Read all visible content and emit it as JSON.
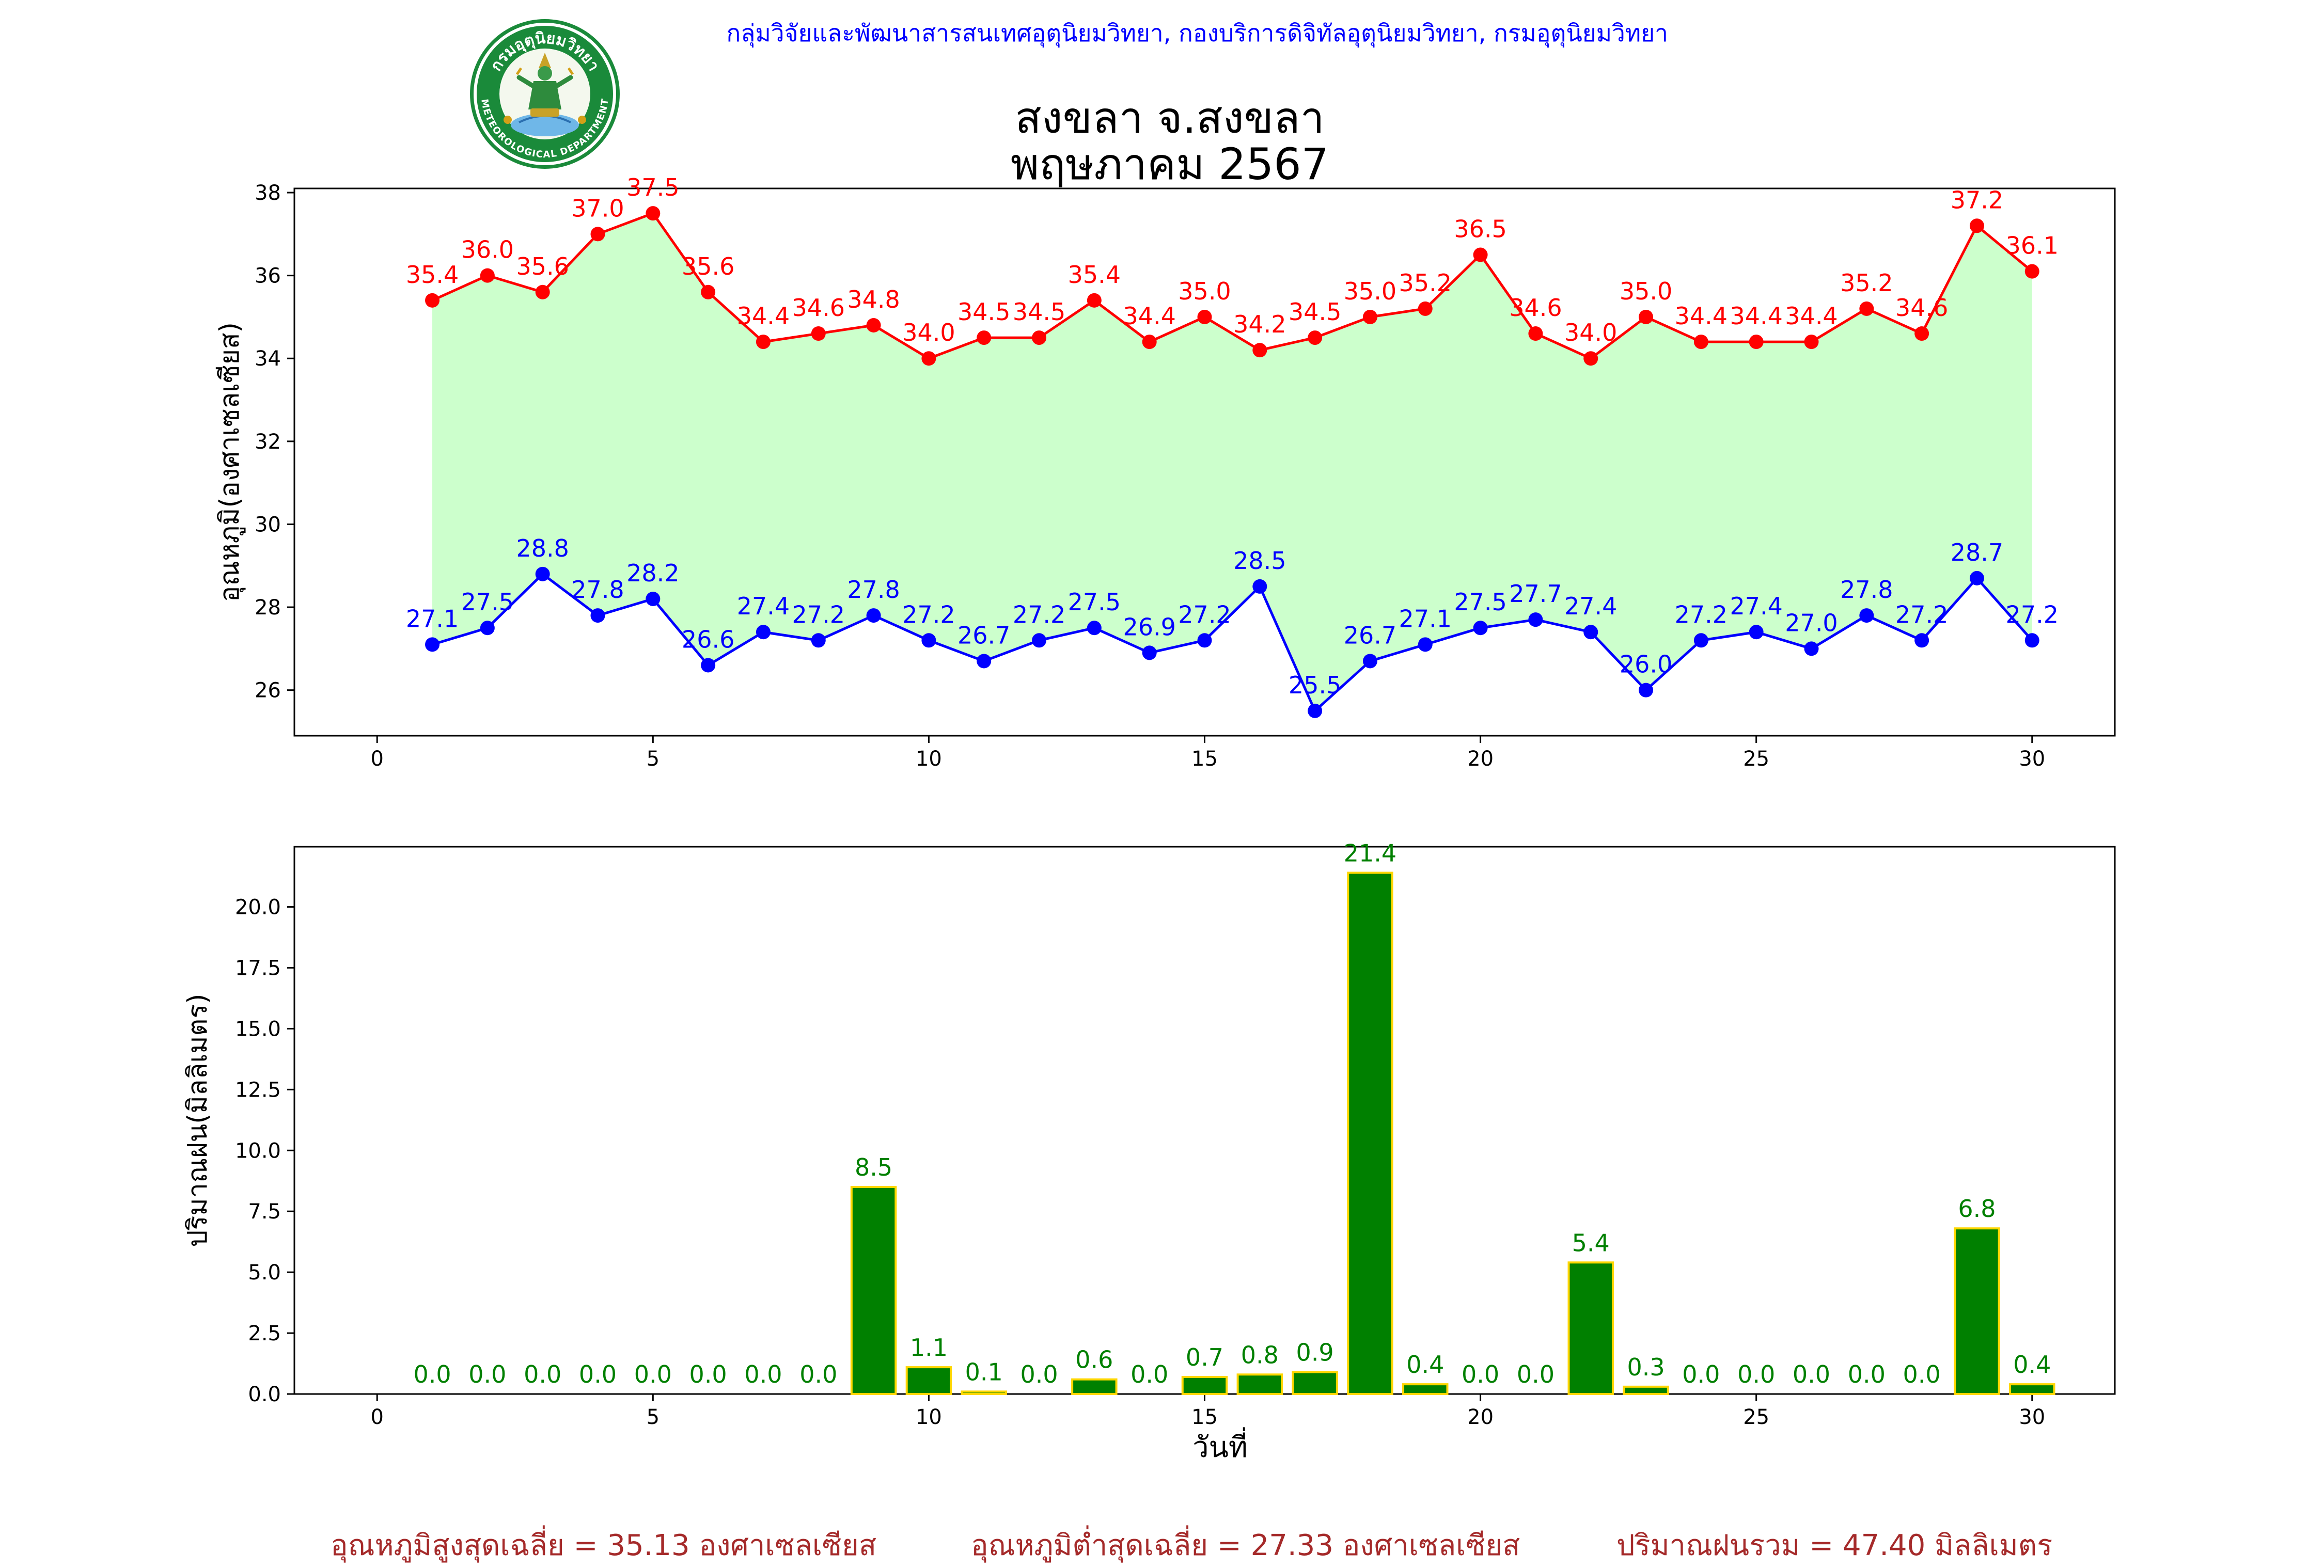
{
  "header": {
    "credit": "กลุ่มวิจัยและพัฒนาสารสนเทศอุตุนิยมวิทยา, กองบริการดิจิทัลอุตุนิยมวิทยา, กรมอุตุนิยมวิทยา",
    "title_line1": "สงขลา จ.สงขลา",
    "title_line2": "พฤษภาคม 2567",
    "logo_text_top": "กรมอุตุนิยมวิทยา",
    "logo_text_bottom": "METEOROLOGICAL DEPARTMENT"
  },
  "colors": {
    "max_temp": "#ff0000",
    "min_temp": "#0000ff",
    "temp_fill": "#ccffcc",
    "rain_bar": "#008000",
    "rain_edge": "#ffd700",
    "rain_label": "#008000",
    "footer": "#a52a2a"
  },
  "chart_data": [
    {
      "type": "line",
      "ylabel": "อุณหภูมิ(องศาเซลเซียส)",
      "xlim": [
        -1.5,
        31.5
      ],
      "ylim": [
        24.9,
        38.1
      ],
      "xticks": [
        0,
        5,
        10,
        15,
        20,
        25,
        30
      ],
      "yticks": [
        26,
        28,
        30,
        32,
        34,
        36,
        38
      ],
      "x": [
        1,
        2,
        3,
        4,
        5,
        6,
        7,
        8,
        9,
        10,
        11,
        12,
        13,
        14,
        15,
        16,
        17,
        18,
        19,
        20,
        21,
        22,
        23,
        24,
        25,
        26,
        27,
        28,
        29,
        30
      ],
      "series": [
        {
          "key": "max",
          "values": [
            35.4,
            36.0,
            35.6,
            37.0,
            37.5,
            35.6,
            34.4,
            34.6,
            34.8,
            34.0,
            34.5,
            34.5,
            35.4,
            34.4,
            35.0,
            34.2,
            34.5,
            35.0,
            35.2,
            36.5,
            34.6,
            34.0,
            35.0,
            34.4,
            34.4,
            34.4,
            35.2,
            34.6,
            37.2,
            36.1
          ]
        },
        {
          "key": "min",
          "values": [
            27.1,
            27.5,
            28.8,
            27.8,
            28.2,
            26.6,
            27.4,
            27.2,
            27.8,
            27.2,
            26.7,
            27.2,
            27.5,
            26.9,
            27.2,
            28.5,
            25.5,
            26.7,
            27.1,
            27.5,
            27.7,
            27.4,
            26.0,
            27.2,
            27.4,
            27.0,
            27.8,
            27.2,
            28.7,
            27.2
          ]
        }
      ]
    },
    {
      "type": "bar",
      "ylabel": "ปริมาณฝน(มิลลิเมตร)",
      "xlabel": "วันที่",
      "xlim": [
        -1.5,
        31.5
      ],
      "ylim": [
        0,
        22.47
      ],
      "xticks": [
        0,
        5,
        10,
        15,
        20,
        25,
        30
      ],
      "yticks": [
        0.0,
        2.5,
        5.0,
        7.5,
        10.0,
        12.5,
        15.0,
        17.5,
        20.0
      ],
      "x": [
        1,
        2,
        3,
        4,
        5,
        6,
        7,
        8,
        9,
        10,
        11,
        12,
        13,
        14,
        15,
        16,
        17,
        18,
        19,
        20,
        21,
        22,
        23,
        24,
        25,
        26,
        27,
        28,
        29,
        30
      ],
      "values": [
        0.0,
        0.0,
        0.0,
        0.0,
        0.0,
        0.0,
        0.0,
        0.0,
        8.5,
        1.1,
        0.1,
        0.0,
        0.6,
        0.0,
        0.7,
        0.8,
        0.9,
        21.4,
        0.4,
        0.0,
        0.0,
        5.4,
        0.3,
        0.0,
        0.0,
        0.0,
        0.0,
        0.0,
        6.8,
        0.4
      ]
    }
  ],
  "footer": {
    "avg_max": "อุณหภูมิสูงสุดเฉลี่ย = 35.13 องศาเซลเซียส",
    "avg_min": "อุณหภูมิต่ำสุดเฉลี่ย = 27.33 องศาเซลเซียส",
    "total_rain": "ปริมาณฝนรวม = 47.40 มิลลิเมตร"
  }
}
